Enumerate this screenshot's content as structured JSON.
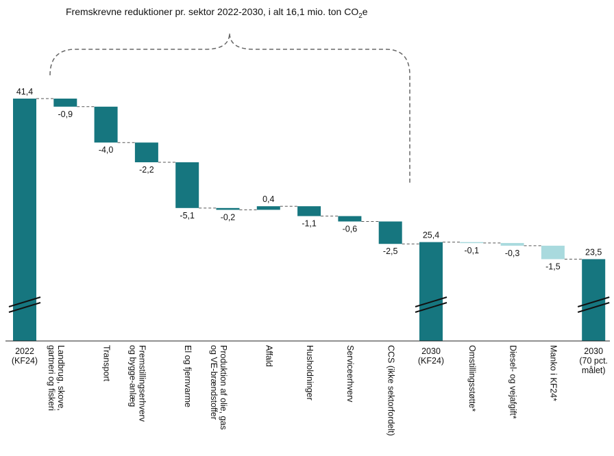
{
  "chart_data": {
    "type": "waterfall",
    "title_main": "Fremskrevne reduktioner pr. sektor 2022-2030, i alt 16,1 mio. ton CO",
    "title_sub": "2",
    "title_end": "e",
    "colors": {
      "main": "#16767f",
      "light": "#a9dade"
    },
    "bars": [
      {
        "label": [
          "2022",
          "(KF24)"
        ],
        "kind": "total",
        "value": 41.4,
        "value_label": "41,4",
        "broken": true,
        "rotated": false,
        "color": "main"
      },
      {
        "label": [
          "Landbrug, skove,",
          "gartneri og fiskeri"
        ],
        "kind": "delta",
        "value": -0.9,
        "value_label": "-0,9",
        "rotated": true,
        "color": "main"
      },
      {
        "label": [
          "Transport"
        ],
        "kind": "delta",
        "value": -4.0,
        "value_label": "-4,0",
        "rotated": true,
        "color": "main"
      },
      {
        "label": [
          "Fremstillingserhverv",
          "og bygge-anlæg"
        ],
        "kind": "delta",
        "value": -2.2,
        "value_label": "-2,2",
        "rotated": true,
        "color": "main"
      },
      {
        "label": [
          "El og fjernvarme"
        ],
        "kind": "delta",
        "value": -5.1,
        "value_label": "-5,1",
        "rotated": true,
        "color": "main"
      },
      {
        "label": [
          "Produktion af olie, gas",
          "og VE-brændstoffer"
        ],
        "kind": "delta",
        "value": -0.2,
        "value_label": "-0,2",
        "rotated": true,
        "color": "main"
      },
      {
        "label": [
          "Affald"
        ],
        "kind": "delta",
        "value": 0.4,
        "value_label": "0,4",
        "rotated": true,
        "color": "main"
      },
      {
        "label": [
          "Husholdninger"
        ],
        "kind": "delta",
        "value": -1.1,
        "value_label": "-1,1",
        "rotated": true,
        "color": "main"
      },
      {
        "label": [
          "Serviceerhverv"
        ],
        "kind": "delta",
        "value": -0.6,
        "value_label": "-0,6",
        "rotated": true,
        "color": "main"
      },
      {
        "label": [
          "CCS (ikke sektorfordelt)"
        ],
        "kind": "delta",
        "value": -2.5,
        "value_label": "-2,5",
        "rotated": true,
        "color": "main"
      },
      {
        "label": [
          "2030",
          "(KF24)"
        ],
        "kind": "total",
        "value": 25.4,
        "value_label": "25,4",
        "broken": true,
        "rotated": false,
        "color": "main"
      },
      {
        "label": [
          "Omstillingsstøtte*"
        ],
        "kind": "delta",
        "value": -0.1,
        "value_label": "-0,1",
        "rotated": true,
        "color": "light"
      },
      {
        "label": [
          "Diesel- og vejafgift*"
        ],
        "kind": "delta",
        "value": -0.3,
        "value_label": "-0,3",
        "rotated": true,
        "color": "light"
      },
      {
        "label": [
          "Manko i KF24*"
        ],
        "kind": "delta",
        "value": -1.5,
        "value_label": "-1,5",
        "rotated": true,
        "color": "light"
      },
      {
        "label": [
          "2030",
          "(70 pct.",
          "målet)"
        ],
        "kind": "total",
        "value": 23.5,
        "value_label": "23,5",
        "broken": true,
        "rotated": false,
        "color": "main"
      }
    ]
  }
}
